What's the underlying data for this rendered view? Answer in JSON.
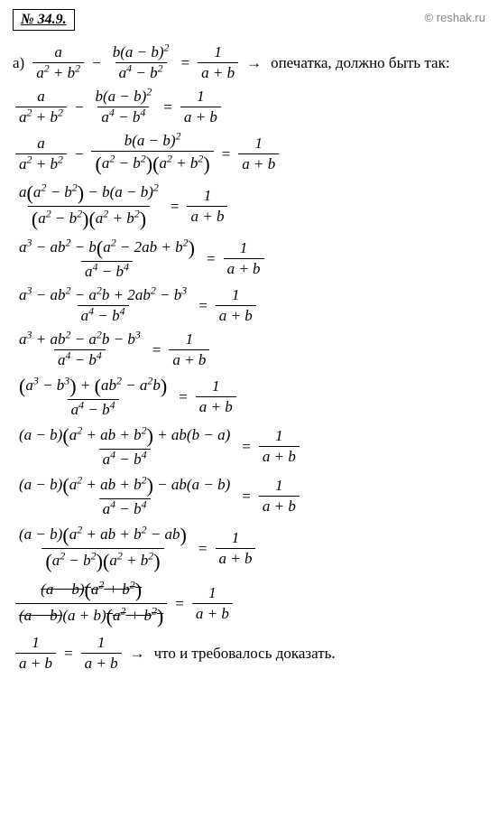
{
  "problem_number": "№ 34.9.",
  "watermark": "© reshak.ru",
  "label_a": "а)",
  "typo_text": "опечатка, должно быть так:",
  "qed_text": "что и требовалось доказать.",
  "arrow": "→",
  "minus": "−",
  "plus": "+",
  "equals": "=",
  "lines": [
    {
      "f1_num": "a",
      "f1_den": "a² + b²",
      "f2_num": "b(a − b)²",
      "f2_den": "a⁴ − b²",
      "f3_num": "1",
      "f3_den": "a + b"
    },
    {
      "f1_num": "a",
      "f1_den": "a² + b²",
      "f2_num": "b(a − b)²",
      "f2_den": "a⁴ − b⁴",
      "f3_num": "1",
      "f3_den": "a + b"
    },
    {
      "f1_num": "a",
      "f1_den": "a² + b²",
      "f2_num": "b(a − b)²",
      "f2_den": "(a² − b²)(a² + b²)",
      "f3_num": "1",
      "f3_den": "a + b"
    },
    {
      "f1_num": "a(a² − b²) − b(a − b)²",
      "f1_den": "(a² − b²)(a² + b²)",
      "f3_num": "1",
      "f3_den": "a + b"
    },
    {
      "f1_num": "a³ − ab² − b(a² − 2ab + b²)",
      "f1_den": "a⁴ − b⁴",
      "f3_num": "1",
      "f3_den": "a + b"
    },
    {
      "f1_num": "a³ − ab² − a²b + 2ab² − b³",
      "f1_den": "a⁴ − b⁴",
      "f3_num": "1",
      "f3_den": "a + b"
    },
    {
      "f1_num": "a³ + ab² − a²b − b³",
      "f1_den": "a⁴ − b⁴",
      "f3_num": "1",
      "f3_den": "a + b"
    },
    {
      "f1_num": "(a³ − b³) + (ab² − a²b)",
      "f1_den": "a⁴ − b⁴",
      "f3_num": "1",
      "f3_den": "a + b"
    },
    {
      "f1_num": "(a − b)(a² + ab + b²) + ab(b − a)",
      "f1_den": "a⁴ − b⁴",
      "f3_num": "1",
      "f3_den": "a + b"
    },
    {
      "f1_num": "(a − b)(a² + ab + b²) − ab(a − b)",
      "f1_den": "a⁴ − b⁴",
      "f3_num": "1",
      "f3_den": "a + b"
    },
    {
      "f1_num": "(a − b)(a² + ab + b² − ab)",
      "f1_den": "(a² − b²)(a² + b²)",
      "f3_num": "1",
      "f3_den": "a + b"
    },
    {
      "f1_num_strike1": "(a − b)",
      "f1_num_strike2": "(a² + b²)",
      "f1_den_strike1": "(a − b)",
      "f1_den_plain": "(a + b)",
      "f1_den_strike2": "(a² + b²)",
      "f3_num": "1",
      "f3_den": "a + b"
    },
    {
      "f1_num": "1",
      "f1_den": "a + b",
      "f3_num": "1",
      "f3_den": "a + b"
    }
  ]
}
